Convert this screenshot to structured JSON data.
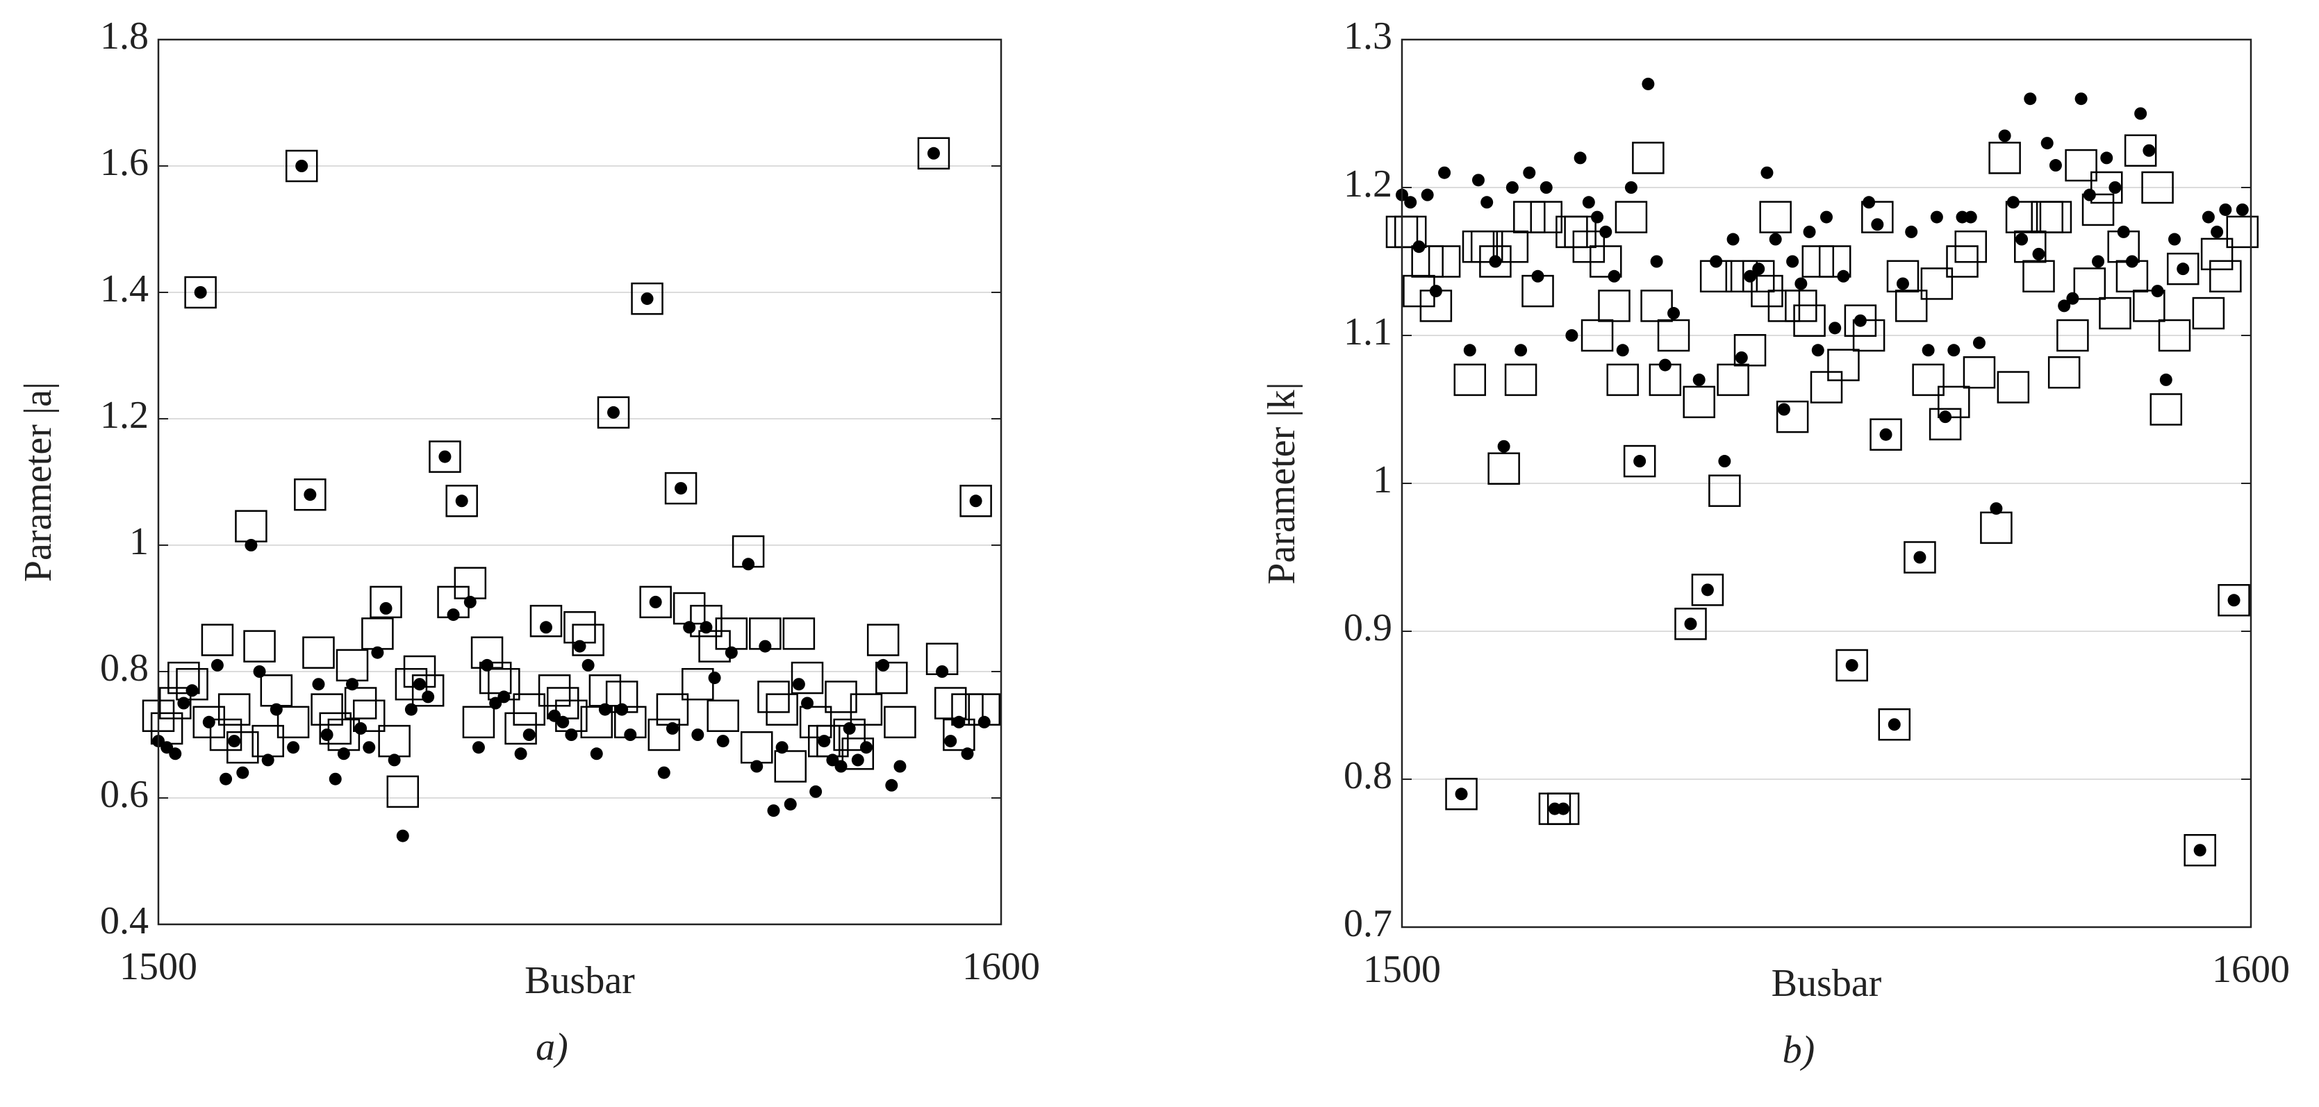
{
  "chart_data": [
    {
      "type": "scatter",
      "xlabel": "Busbar",
      "ylabel": "Parameter |a|",
      "caption": "a)",
      "xlim": [
        1500,
        1600
      ],
      "xticks": [
        1500,
        1600
      ],
      "ylim": [
        0.4,
        1.8
      ],
      "yticks": [
        0.4,
        0.6,
        0.8,
        1,
        1.2,
        1.4,
        1.6,
        1.8
      ],
      "grid": true,
      "x": [
        1500,
        1501,
        1502,
        1503,
        1504,
        1505,
        1506,
        1507,
        1508,
        1509,
        1510,
        1511,
        1512,
        1513,
        1514,
        1516,
        1517,
        1518,
        1519,
        1520,
        1521,
        1522,
        1523,
        1524,
        1525,
        1526,
        1527,
        1528,
        1529,
        1530,
        1531,
        1532,
        1534,
        1535,
        1536,
        1537,
        1538,
        1539,
        1540,
        1541,
        1543,
        1544,
        1546,
        1547,
        1548,
        1549,
        1550,
        1551,
        1552,
        1553,
        1554,
        1555,
        1556,
        1558,
        1559,
        1560,
        1561,
        1562,
        1563,
        1564,
        1565,
        1566,
        1567,
        1568,
        1570,
        1571,
        1572,
        1573,
        1574,
        1575,
        1576,
        1577,
        1578,
        1579,
        1580,
        1581,
        1582,
        1583,
        1584,
        1586,
        1587,
        1588,
        1592,
        1593,
        1594,
        1595,
        1596,
        1597,
        1598
      ],
      "series": [
        {
          "marker": "square",
          "color": "#000000",
          "values": [
            0.73,
            0.71,
            0.75,
            0.79,
            0.78,
            1.4,
            0.72,
            0.85,
            0.7,
            0.74,
            0.68,
            1.03,
            0.84,
            0.69,
            0.77,
            0.72,
            1.6,
            1.08,
            0.83,
            0.74,
            0.71,
            0.7,
            0.81,
            0.75,
            0.73,
            0.86,
            0.91,
            0.69,
            0.61,
            0.78,
            0.8,
            0.77,
            1.14,
            0.91,
            1.07,
            0.94,
            0.72,
            0.83,
            0.79,
            0.78,
            0.71,
            0.74,
            0.88,
            0.77,
            0.75,
            0.73,
            0.87,
            0.85,
            0.72,
            0.77,
            1.21,
            0.76,
            0.72,
            1.39,
            0.91,
            0.7,
            0.74,
            1.09,
            0.9,
            0.78,
            0.88,
            0.84,
            0.73,
            0.86,
            0.99,
            0.68,
            0.86,
            0.76,
            0.74,
            0.65,
            0.86,
            0.79,
            0.72,
            0.69,
            0.69,
            0.76,
            0.7,
            0.67,
            0.74,
            0.85,
            0.79,
            0.72,
            1.62,
            0.82,
            0.75,
            0.7,
            0.74,
            1.07,
            0.74
          ]
        },
        {
          "marker": "dot",
          "color": "#000000",
          "values": [
            0.69,
            0.68,
            0.67,
            0.75,
            0.77,
            1.4,
            0.72,
            0.81,
            0.63,
            0.69,
            0.64,
            1.0,
            0.8,
            0.66,
            0.74,
            0.68,
            1.6,
            1.08,
            0.78,
            0.7,
            0.63,
            0.67,
            0.78,
            0.71,
            0.68,
            0.83,
            0.9,
            0.66,
            0.54,
            0.74,
            0.78,
            0.76,
            1.14,
            0.89,
            1.07,
            0.91,
            0.68,
            0.81,
            0.75,
            0.76,
            0.67,
            0.7,
            0.87,
            0.73,
            0.72,
            0.7,
            0.84,
            0.81,
            0.67,
            0.74,
            1.21,
            0.74,
            0.7,
            1.39,
            0.91,
            0.64,
            0.71,
            1.09,
            0.87,
            0.7,
            0.87,
            0.79,
            0.69,
            0.83,
            0.97,
            0.65,
            0.84,
            0.58,
            0.68,
            0.59,
            0.78,
            0.75,
            0.61,
            0.69,
            0.66,
            0.65,
            0.71,
            0.66,
            0.68,
            0.81,
            0.62,
            0.65,
            1.62,
            0.8,
            0.69,
            0.72,
            0.67,
            1.07,
            0.72
          ]
        }
      ]
    },
    {
      "type": "scatter",
      "xlabel": "Busbar",
      "ylabel": "Parameter |k|",
      "caption": "b)",
      "xlim": [
        1500,
        1600
      ],
      "xticks": [
        1500,
        1600
      ],
      "ylim": [
        0.7,
        1.3
      ],
      "yticks": [
        0.7,
        0.8,
        0.9,
        1,
        1.1,
        1.2,
        1.3
      ],
      "grid": true,
      "x": [
        1500,
        1501,
        1502,
        1503,
        1504,
        1505,
        1507,
        1508,
        1509,
        1510,
        1511,
        1512,
        1513,
        1514,
        1515,
        1516,
        1517,
        1518,
        1519,
        1520,
        1521,
        1522,
        1523,
        1524,
        1525,
        1526,
        1527,
        1528,
        1529,
        1530,
        1531,
        1532,
        1534,
        1535,
        1536,
        1537,
        1538,
        1539,
        1540,
        1541,
        1542,
        1543,
        1544,
        1545,
        1546,
        1547,
        1548,
        1549,
        1550,
        1551,
        1552,
        1553,
        1554,
        1555,
        1556,
        1557,
        1558,
        1559,
        1560,
        1561,
        1562,
        1563,
        1564,
        1565,
        1566,
        1567,
        1568,
        1570,
        1571,
        1572,
        1573,
        1574,
        1575,
        1576,
        1577,
        1578,
        1579,
        1580,
        1581,
        1582,
        1583,
        1584,
        1585,
        1586,
        1587,
        1588,
        1589,
        1590,
        1591,
        1592,
        1594,
        1595,
        1596,
        1597,
        1598,
        1599
      ],
      "series": [
        {
          "marker": "square",
          "color": "#000000",
          "values": [
            1.17,
            1.17,
            1.13,
            1.15,
            1.12,
            1.15,
            0.79,
            1.07,
            1.16,
            1.16,
            1.15,
            1.01,
            1.16,
            1.07,
            1.18,
            1.13,
            1.18,
            0.78,
            0.78,
            1.17,
            1.17,
            1.16,
            1.1,
            1.15,
            1.12,
            1.07,
            1.18,
            1.015,
            1.22,
            1.12,
            1.07,
            1.1,
            0.905,
            1.055,
            0.928,
            1.14,
            0.995,
            1.07,
            1.14,
            1.09,
            1.14,
            1.13,
            1.18,
            1.12,
            1.045,
            1.12,
            1.11,
            1.15,
            1.065,
            1.15,
            1.08,
            0.877,
            1.11,
            1.1,
            1.18,
            1.033,
            0.837,
            1.14,
            1.12,
            0.95,
            1.07,
            1.135,
            1.04,
            1.055,
            1.15,
            1.16,
            1.075,
            0.97,
            1.22,
            1.065,
            1.18,
            1.16,
            1.14,
            1.18,
            1.18,
            1.075,
            1.1,
            1.215,
            1.135,
            1.185,
            1.2,
            1.115,
            1.16,
            1.14,
            1.225,
            1.12,
            1.2,
            1.05,
            1.1,
            1.145,
            0.752,
            1.115,
            1.155,
            1.14,
            0.921,
            1.17
          ]
        },
        {
          "marker": "dot",
          "color": "#000000",
          "values": [
            1.195,
            1.19,
            1.16,
            1.195,
            1.13,
            1.21,
            0.79,
            1.09,
            1.205,
            1.19,
            1.15,
            1.025,
            1.2,
            1.09,
            1.21,
            1.14,
            1.2,
            0.78,
            0.78,
            1.1,
            1.22,
            1.19,
            1.18,
            1.17,
            1.14,
            1.09,
            1.2,
            1.015,
            1.27,
            1.15,
            1.08,
            1.115,
            0.905,
            1.07,
            0.928,
            1.15,
            1.015,
            1.165,
            1.085,
            1.14,
            1.145,
            1.21,
            1.165,
            1.05,
            1.15,
            1.135,
            1.17,
            1.09,
            1.18,
            1.105,
            1.14,
            0.877,
            1.11,
            1.19,
            1.175,
            1.033,
            0.837,
            1.135,
            1.17,
            0.95,
            1.09,
            1.18,
            1.045,
            1.09,
            1.18,
            1.18,
            1.095,
            0.983,
            1.235,
            1.19,
            1.165,
            1.26,
            1.155,
            1.23,
            1.215,
            1.12,
            1.125,
            1.26,
            1.195,
            1.15,
            1.22,
            1.2,
            1.17,
            1.15,
            1.25,
            1.225,
            1.13,
            1.07,
            1.165,
            1.145,
            0.752,
            1.18,
            1.17,
            1.185,
            0.921,
            1.185
          ]
        }
      ]
    }
  ]
}
